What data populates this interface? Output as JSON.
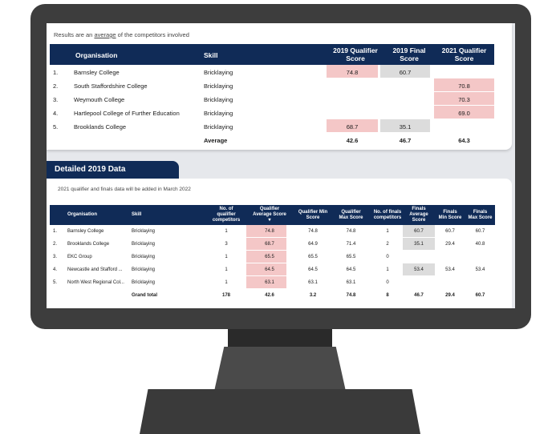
{
  "intro": {
    "prefix": "Results are an ",
    "link": "average",
    "suffix": " of the competitors involved"
  },
  "table1": {
    "headers": {
      "org": "Organisation",
      "skill": "Skill",
      "q2019a": "2019 Qualifier",
      "q2019b": "Score",
      "f2019a": "2019 Final",
      "f2019b": "Score",
      "q2021a": "2021 Qualifier",
      "q2021b": "Score"
    },
    "rows": [
      {
        "rank": "1.",
        "org": "Barnsley College",
        "skill": "Bricklaying",
        "q2019": "74.8",
        "f2019": "60.7",
        "q2021": ""
      },
      {
        "rank": "2.",
        "org": "South Staffordshire College",
        "skill": "Bricklaying",
        "q2019": "",
        "f2019": "",
        "q2021": "70.8"
      },
      {
        "rank": "3.",
        "org": "Weymouth College",
        "skill": "Bricklaying",
        "q2019": "",
        "f2019": "",
        "q2021": "70.3"
      },
      {
        "rank": "4.",
        "org": "Hartlepool College of Further Education",
        "skill": "Bricklaying",
        "q2019": "",
        "f2019": "",
        "q2021": "69.0"
      },
      {
        "rank": "5.",
        "org": "Brooklands College",
        "skill": "Bricklaying",
        "q2019": "68.7",
        "f2019": "35.1",
        "q2021": ""
      }
    ],
    "average": {
      "label": "Average",
      "q2019": "42.6",
      "f2019": "46.7",
      "q2021": "64.3"
    }
  },
  "section": {
    "title": "Detailed 2019 Data",
    "note": "2021 qualifier and finals data will be added in March 2022"
  },
  "table2": {
    "headers": {
      "org": "Organisation",
      "skill": "Skill",
      "n1": "No. of",
      "n2": "qualifier",
      "n3": "competitors",
      "a1": "Qualifier",
      "a2": "Average Score",
      "a3": "▾",
      "mn1": "Qualifier Min",
      "mn2": "Score",
      "mx1": "Qualifier",
      "mx2": "Max Score",
      "fn1": "No. of finals",
      "fn2": "competitors",
      "fa1": "Finals",
      "fa2": "Average",
      "fa3": "Score",
      "fmin1": "Finals",
      "fmin2": "Min Score",
      "fmax1": "Finals",
      "fmax2": "Max Score"
    },
    "rows": [
      {
        "rank": "1.",
        "org": "Barnsley College",
        "skill": "Bricklaying",
        "nq": "1",
        "avg": "74.8",
        "min": "74.8",
        "max": "74.8",
        "nf": "1",
        "favg": "60.7",
        "fmin": "60.7",
        "fmax": "60.7"
      },
      {
        "rank": "2.",
        "org": "Brooklands College",
        "skill": "Bricklaying",
        "nq": "3",
        "avg": "68.7",
        "min": "64.9",
        "max": "71.4",
        "nf": "2",
        "favg": "35.1",
        "fmin": "29.4",
        "fmax": "40.8"
      },
      {
        "rank": "3.",
        "org": "EKC Group",
        "skill": "Bricklaying",
        "nq": "1",
        "avg": "65.5",
        "min": "65.5",
        "max": "65.5",
        "nf": "0",
        "favg": "",
        "fmin": "",
        "fmax": ""
      },
      {
        "rank": "4.",
        "org": "Newcastle and Stafford ...",
        "skill": "Bricklaying",
        "nq": "1",
        "avg": "64.5",
        "min": "64.5",
        "max": "64.5",
        "nf": "1",
        "favg": "53.4",
        "fmin": "53.4",
        "fmax": "53.4"
      },
      {
        "rank": "5.",
        "org": "North West Regional Col...",
        "skill": "Bricklaying",
        "nq": "1",
        "avg": "63.1",
        "min": "63.1",
        "max": "63.1",
        "nf": "0",
        "favg": "",
        "fmin": "",
        "fmax": ""
      }
    ],
    "total": {
      "label": "Grand total",
      "nq": "178",
      "avg": "42.6",
      "min": "3.2",
      "max": "74.8",
      "nf": "8",
      "favg": "46.7",
      "fmin": "29.4",
      "fmax": "60.7"
    }
  },
  "colors": {
    "header": "#102b57",
    "qualifier_fill": "#f4c7c7",
    "final_fill": "#dcdcdc",
    "bezel": "#3d3d3d"
  }
}
